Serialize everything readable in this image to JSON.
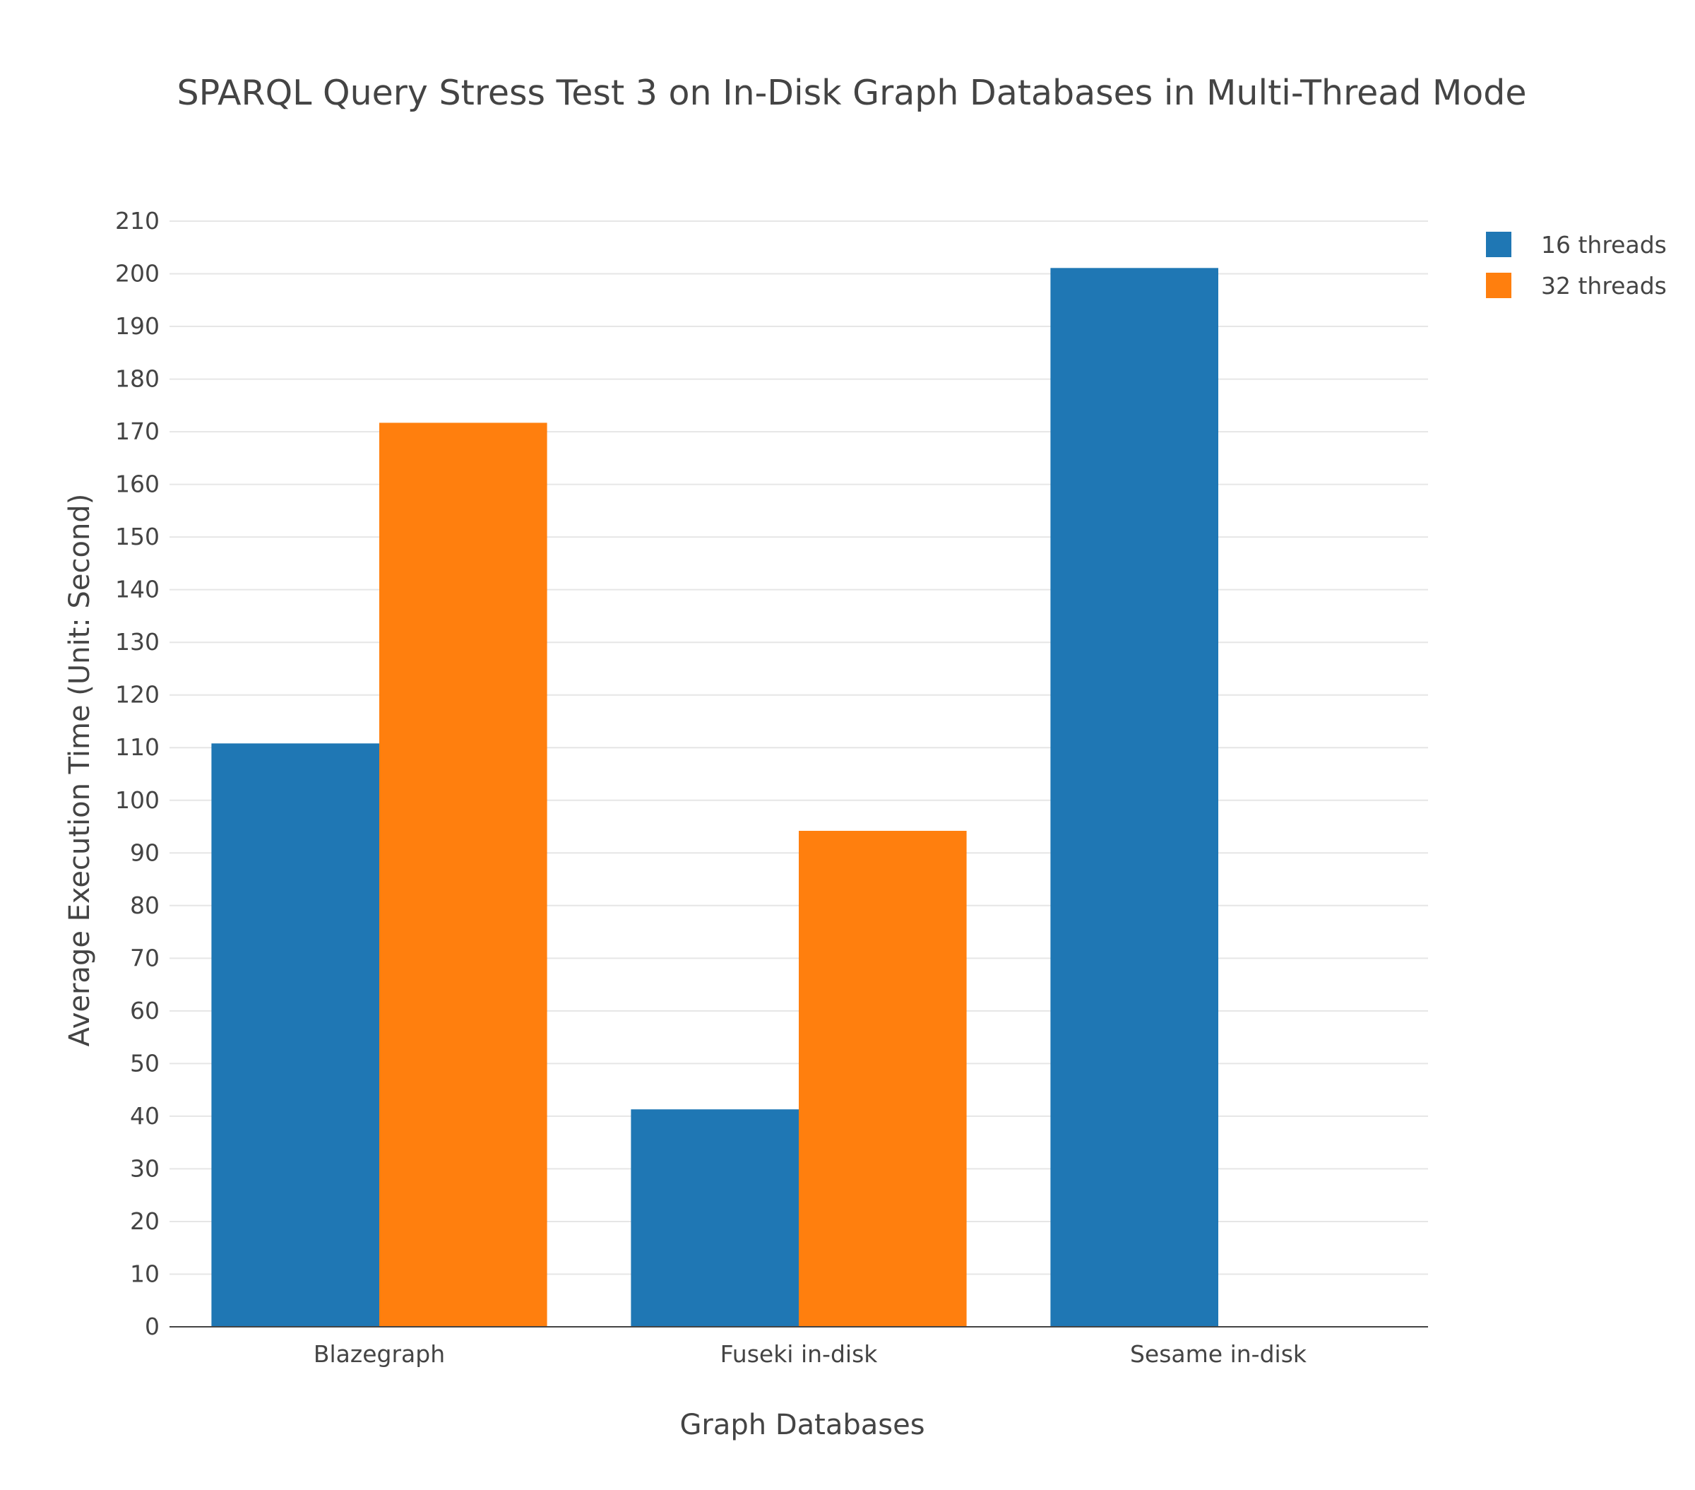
{
  "chart_data": {
    "type": "bar",
    "title": "SPARQL Query Stress Test 3 on In-Disk Graph Databases in Multi-Thread Mode",
    "xlabel": "Graph Databases",
    "ylabel": "Average Execution Time (Unit: Second)",
    "categories": [
      "Blazegraph",
      "Fuseki in-disk",
      "Sesame in-disk"
    ],
    "series": [
      {
        "name": "16 threads",
        "color": "#1f77b4",
        "values": [
          110.8,
          41.3,
          201.1
        ]
      },
      {
        "name": "32 threads",
        "color": "#ff7f0e",
        "values": [
          171.7,
          94.2,
          null
        ]
      }
    ],
    "ylim": [
      0,
      210
    ],
    "yticks": [
      0,
      10,
      20,
      30,
      40,
      50,
      60,
      70,
      80,
      90,
      100,
      110,
      120,
      130,
      140,
      150,
      160,
      170,
      180,
      190,
      200,
      210
    ],
    "grid": true,
    "legend_position": "top-right"
  }
}
